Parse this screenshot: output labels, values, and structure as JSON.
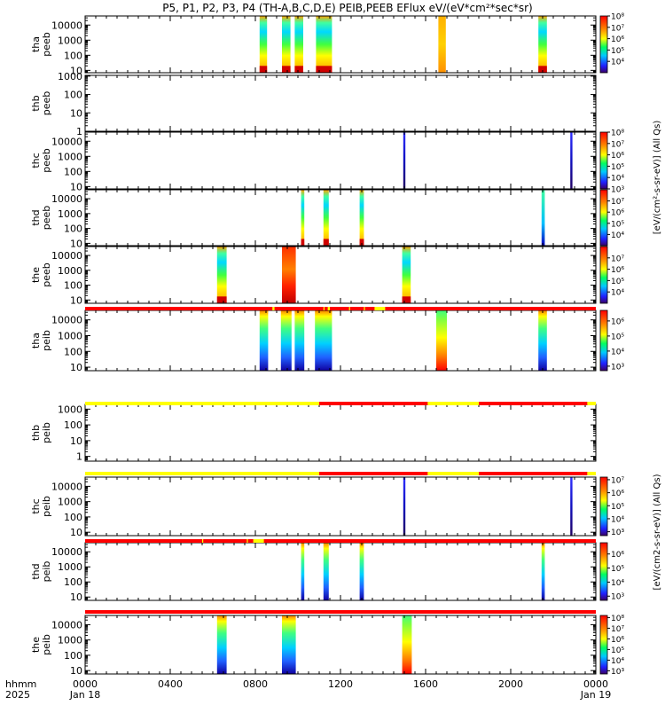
{
  "title": "P5, P1, P2, P3, P4 (TH-A,B,C,D,E) PEIB,PEEB EFlux eV/(eV*cm²*sec*sr)",
  "xaxis": {
    "row1_label": "hhmm",
    "row2_label": "2025",
    "ticks": [
      {
        "hours": 0,
        "label": "0000",
        "sublabel": "Jan 18"
      },
      {
        "hours": 4,
        "label": "0400",
        "sublabel": ""
      },
      {
        "hours": 8,
        "label": "0800",
        "sublabel": ""
      },
      {
        "hours": 12,
        "label": "1200",
        "sublabel": ""
      },
      {
        "hours": 16,
        "label": "1600",
        "sublabel": ""
      },
      {
        "hours": 20,
        "label": "2000",
        "sublabel": ""
      },
      {
        "hours": 24,
        "label": "0000",
        "sublabel": "Jan 19"
      }
    ],
    "range_hours": [
      0,
      24
    ]
  },
  "colorbar_unit_top": "[eV/(cm²-s-sr-eV)] (All Qs)",
  "colorbar_unit_bottom": "[eV/(cm2-s-sr-eV)] (All Qs)",
  "status_bars": [
    {
      "after_panel": 4,
      "segments": [
        {
          "start": 0,
          "end": 24,
          "color": "#ff0000"
        },
        {
          "start": 8.8,
          "end": 8.9,
          "color": "#ffff00"
        },
        {
          "start": 11.2,
          "end": 11.25,
          "color": "#ffff00"
        },
        {
          "start": 11.4,
          "end": 11.5,
          "color": "#ffff00"
        },
        {
          "start": 12.4,
          "end": 12.45,
          "color": "#ffff00"
        },
        {
          "start": 13.1,
          "end": 13.15,
          "color": "#ffff00"
        },
        {
          "start": 13.6,
          "end": 14.1,
          "color": "#ffff00"
        }
      ]
    },
    {
      "after_panel": 5,
      "segments": [
        {
          "start": 0,
          "end": 11,
          "color": "#ffff00"
        },
        {
          "start": 11,
          "end": 16.1,
          "color": "#ff0000"
        },
        {
          "start": 16.1,
          "end": 18.5,
          "color": "#ffff00"
        },
        {
          "start": 18.5,
          "end": 23.6,
          "color": "#ff0000"
        },
        {
          "start": 23.6,
          "end": 24,
          "color": "#ffff00"
        }
      ]
    },
    {
      "after_panel": 6,
      "segments": [
        {
          "start": 0,
          "end": 11,
          "color": "#ffff00"
        },
        {
          "start": 11,
          "end": 16.1,
          "color": "#ff0000"
        },
        {
          "start": 16.1,
          "end": 18.5,
          "color": "#ffff00"
        },
        {
          "start": 18.5,
          "end": 23.6,
          "color": "#ff0000"
        },
        {
          "start": 23.6,
          "end": 24,
          "color": "#ffff00"
        }
      ]
    },
    {
      "after_panel": 7,
      "segments": [
        {
          "start": 0,
          "end": 24,
          "color": "#ff0000"
        },
        {
          "start": 5.5,
          "end": 5.55,
          "color": "#ffff00"
        },
        {
          "start": 7.6,
          "end": 7.65,
          "color": "#ffff00"
        },
        {
          "start": 7.9,
          "end": 8.4,
          "color": "#ffff00"
        }
      ]
    },
    {
      "after_panel": 8,
      "segments": [
        {
          "start": 0,
          "end": 24,
          "color": "#ff0000"
        }
      ]
    }
  ],
  "chart_data": [
    {
      "type": "heatmap",
      "probe": "tha",
      "instrument": "peeb",
      "ylabel_line1": "tha",
      "ylabel_line2": "peeb",
      "ylog": true,
      "ylim": [
        7,
        40000
      ],
      "yticks": [
        {
          "v": 10,
          "t": "10"
        },
        {
          "v": 100,
          "t": "100"
        },
        {
          "v": 1000,
          "t": "1000"
        },
        {
          "v": 10000,
          "t": "10000"
        }
      ],
      "colorbar": {
        "exp_min": 3,
        "exp_max": 8,
        "ticks": [
          {
            "e": 4,
            "t": "10⁴"
          },
          {
            "e": 5,
            "t": "10⁵"
          },
          {
            "e": 6,
            "t": "10⁶"
          },
          {
            "e": 7,
            "t": "10⁷"
          },
          {
            "e": 8,
            "t": "10⁸"
          }
        ]
      },
      "intervals": [
        {
          "start": 8.2,
          "end": 8.55,
          "style": "ee"
        },
        {
          "start": 9.25,
          "end": 9.65,
          "style": "ee"
        },
        {
          "start": 9.85,
          "end": 10.25,
          "style": "ee"
        },
        {
          "start": 10.85,
          "end": 11.6,
          "style": "ee"
        },
        {
          "start": 16.6,
          "end": 16.95,
          "style": "flat"
        },
        {
          "start": 21.3,
          "end": 21.7,
          "style": "ee"
        }
      ]
    },
    {
      "type": "heatmap",
      "probe": "thb",
      "instrument": "peeb",
      "ylabel_line1": "thb",
      "ylabel_line2": "peeb",
      "ylog": true,
      "ylim": [
        1,
        1100
      ],
      "yticks": [
        {
          "v": 1,
          "t": "1"
        },
        {
          "v": 10,
          "t": "10"
        },
        {
          "v": 100,
          "t": "100"
        },
        {
          "v": 1000,
          "t": "1000"
        }
      ],
      "colorbar": null,
      "intervals": []
    },
    {
      "type": "heatmap",
      "probe": "thc",
      "instrument": "peeb",
      "ylabel_line1": "thc",
      "ylabel_line2": "peeb",
      "ylog": true,
      "ylim": [
        7,
        40000
      ],
      "yticks": [
        {
          "v": 10,
          "t": "10"
        },
        {
          "v": 100,
          "t": "100"
        },
        {
          "v": 1000,
          "t": "1000"
        },
        {
          "v": 10000,
          "t": "10000"
        }
      ],
      "colorbar": {
        "exp_min": 3,
        "exp_max": 8,
        "ticks": [
          {
            "e": 3,
            "t": "10³"
          },
          {
            "e": 4,
            "t": "10⁴"
          },
          {
            "e": 5,
            "t": "10⁵"
          },
          {
            "e": 6,
            "t": "10⁶"
          },
          {
            "e": 7,
            "t": "10⁷"
          },
          {
            "e": 8,
            "t": "10⁸"
          }
        ]
      },
      "intervals": [
        {
          "start": 14.95,
          "end": 15.05,
          "style": "low"
        },
        {
          "start": 22.8,
          "end": 22.9,
          "style": "low"
        }
      ]
    },
    {
      "type": "heatmap",
      "probe": "thd",
      "instrument": "peeb",
      "ylabel_line1": "thd",
      "ylabel_line2": "peeb",
      "ylog": true,
      "ylim": [
        7,
        40000
      ],
      "yticks": [
        {
          "v": 10,
          "t": "10"
        },
        {
          "v": 100,
          "t": "100"
        },
        {
          "v": 1000,
          "t": "1000"
        },
        {
          "v": 10000,
          "t": "10000"
        }
      ],
      "colorbar": {
        "exp_min": 3,
        "exp_max": 8,
        "ticks": [
          {
            "e": 4,
            "t": "10⁴"
          },
          {
            "e": 5,
            "t": "10⁵"
          },
          {
            "e": 6,
            "t": "10⁶"
          },
          {
            "e": 7,
            "t": "10⁷"
          }
        ]
      },
      "intervals": [
        {
          "start": 10.15,
          "end": 10.3,
          "style": "ee"
        },
        {
          "start": 11.2,
          "end": 11.45,
          "style": "ee"
        },
        {
          "start": 12.9,
          "end": 13.1,
          "style": "ee"
        },
        {
          "start": 21.45,
          "end": 21.6,
          "style": "mid"
        }
      ]
    },
    {
      "type": "heatmap",
      "probe": "the",
      "instrument": "peeb",
      "ylabel_line1": "the",
      "ylabel_line2": "peeb",
      "ylog": true,
      "ylim": [
        6,
        40000
      ],
      "yticks": [
        {
          "v": 10,
          "t": "10"
        },
        {
          "v": 100,
          "t": "100"
        },
        {
          "v": 1000,
          "t": "1000"
        },
        {
          "v": 10000,
          "t": "10000"
        }
      ],
      "colorbar": {
        "exp_min": 3,
        "exp_max": 8,
        "ticks": [
          {
            "e": 4,
            "t": "10⁴"
          },
          {
            "e": 5,
            "t": "10⁵"
          },
          {
            "e": 6,
            "t": "10⁶"
          },
          {
            "e": 7,
            "t": "10⁷"
          }
        ]
      },
      "intervals": [
        {
          "start": 6.2,
          "end": 6.65,
          "style": "ee"
        },
        {
          "start": 9.25,
          "end": 9.9,
          "style": "hot"
        },
        {
          "start": 14.9,
          "end": 15.3,
          "style": "ee"
        }
      ]
    },
    {
      "type": "heatmap",
      "probe": "tha",
      "instrument": "peib",
      "ylabel_line1": "tha",
      "ylabel_line2": "peib",
      "ylog": true,
      "ylim": [
        6,
        40000
      ],
      "yticks": [
        {
          "v": 10,
          "t": "10"
        },
        {
          "v": 100,
          "t": "100"
        },
        {
          "v": 1000,
          "t": "1000"
        },
        {
          "v": 10000,
          "t": "10000"
        }
      ],
      "colorbar": {
        "exp_min": 2.7,
        "exp_max": 6.7,
        "ticks": [
          {
            "e": 3,
            "t": "10³"
          },
          {
            "e": 4,
            "t": "10⁴"
          },
          {
            "e": 5,
            "t": "10⁵"
          },
          {
            "e": 6,
            "t": "10⁶"
          }
        ]
      },
      "intervals": [
        {
          "start": 8.2,
          "end": 8.6,
          "style": "ion"
        },
        {
          "start": 9.2,
          "end": 9.7,
          "style": "ion"
        },
        {
          "start": 9.85,
          "end": 10.3,
          "style": "ion"
        },
        {
          "start": 10.8,
          "end": 11.6,
          "style": "ion"
        },
        {
          "start": 16.5,
          "end": 17.0,
          "style": "ionhot"
        },
        {
          "start": 21.3,
          "end": 21.7,
          "style": "ion"
        }
      ]
    },
    {
      "type": "heatmap",
      "probe": "thb",
      "instrument": "peib",
      "ylabel_line1": "thb",
      "ylabel_line2": "peib",
      "ylog": true,
      "ylim": [
        0.5,
        2000
      ],
      "yticks": [
        {
          "v": 1,
          "t": "1"
        },
        {
          "v": 10,
          "t": "10"
        },
        {
          "v": 100,
          "t": "100"
        },
        {
          "v": 1000,
          "t": "1000"
        }
      ],
      "colorbar": null,
      "intervals": []
    },
    {
      "type": "heatmap",
      "probe": "thc",
      "instrument": "peib",
      "ylabel_line1": "thc",
      "ylabel_line2": "peib",
      "ylog": true,
      "ylim": [
        6,
        40000
      ],
      "yticks": [
        {
          "v": 10,
          "t": "10"
        },
        {
          "v": 100,
          "t": "100"
        },
        {
          "v": 1000,
          "t": "1000"
        },
        {
          "v": 10000,
          "t": "10000"
        }
      ],
      "colorbar": {
        "exp_min": 2.7,
        "exp_max": 7.2,
        "ticks": [
          {
            "e": 3,
            "t": "10³"
          },
          {
            "e": 4,
            "t": "10⁴"
          },
          {
            "e": 5,
            "t": "10⁵"
          },
          {
            "e": 6,
            "t": "10⁶"
          },
          {
            "e": 7,
            "t": "10⁷"
          }
        ]
      },
      "intervals": [
        {
          "start": 14.95,
          "end": 15.05,
          "style": "low"
        },
        {
          "start": 22.8,
          "end": 22.9,
          "style": "low"
        }
      ]
    },
    {
      "type": "heatmap",
      "probe": "thd",
      "instrument": "peib",
      "ylabel_line1": "thd",
      "ylabel_line2": "peib",
      "ylog": true,
      "ylim": [
        6,
        40000
      ],
      "yticks": [
        {
          "v": 10,
          "t": "10"
        },
        {
          "v": 100,
          "t": "100"
        },
        {
          "v": 1000,
          "t": "1000"
        },
        {
          "v": 10000,
          "t": "10000"
        }
      ],
      "colorbar": {
        "exp_min": 2.7,
        "exp_max": 6.8,
        "ticks": [
          {
            "e": 3,
            "t": "10³"
          },
          {
            "e": 4,
            "t": "10⁴"
          },
          {
            "e": 5,
            "t": "10⁵"
          },
          {
            "e": 6,
            "t": "10⁶"
          }
        ]
      },
      "intervals": [
        {
          "start": 10.15,
          "end": 10.3,
          "style": "ion"
        },
        {
          "start": 11.2,
          "end": 11.45,
          "style": "ion"
        },
        {
          "start": 12.9,
          "end": 13.1,
          "style": "ion"
        },
        {
          "start": 21.45,
          "end": 21.6,
          "style": "ion"
        }
      ]
    },
    {
      "type": "heatmap",
      "probe": "the",
      "instrument": "peib",
      "ylabel_line1": "the",
      "ylabel_line2": "peib",
      "ylog": true,
      "ylim": [
        6,
        40000
      ],
      "yticks": [
        {
          "v": 10,
          "t": "10"
        },
        {
          "v": 100,
          "t": "100"
        },
        {
          "v": 1000,
          "t": "1000"
        },
        {
          "v": 10000,
          "t": "10000"
        }
      ],
      "colorbar": {
        "exp_min": 2.7,
        "exp_max": 8.2,
        "ticks": [
          {
            "e": 3,
            "t": "10³"
          },
          {
            "e": 4,
            "t": "10⁴"
          },
          {
            "e": 5,
            "t": "10⁵"
          },
          {
            "e": 6,
            "t": "10⁶"
          },
          {
            "e": 7,
            "t": "10⁷"
          },
          {
            "e": 8,
            "t": "10⁸"
          }
        ]
      },
      "intervals": [
        {
          "start": 6.2,
          "end": 6.65,
          "style": "ion"
        },
        {
          "start": 9.25,
          "end": 9.9,
          "style": "ion"
        },
        {
          "start": 14.9,
          "end": 15.35,
          "style": "ionhot"
        }
      ]
    }
  ]
}
